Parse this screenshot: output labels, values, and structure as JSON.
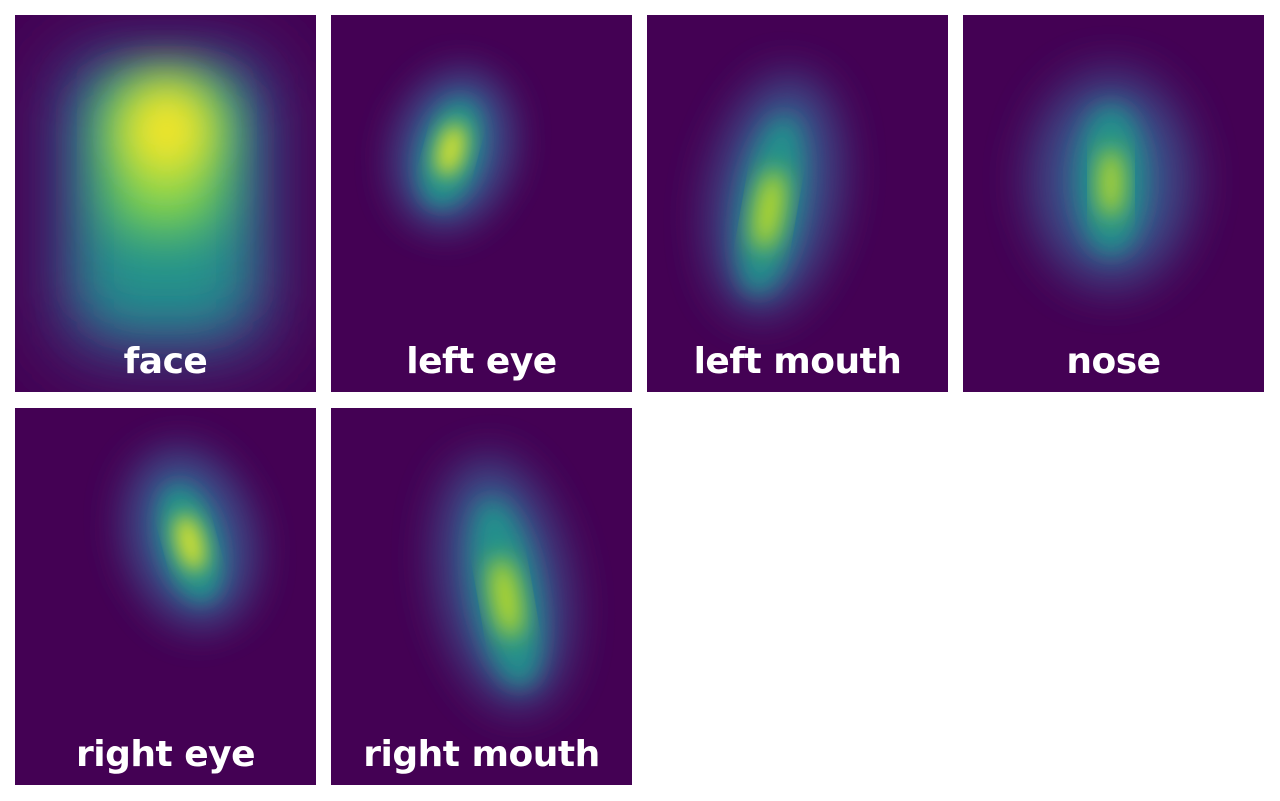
{
  "chart_data": {
    "type": "heatmap",
    "colormap": "viridis",
    "colors": {
      "background": "#440154",
      "low": "#440154",
      "mid": "#21918c",
      "high": "#fde725",
      "label": "#ffffff"
    },
    "panels": [
      {
        "title": "face"
      },
      {
        "title": "left eye"
      },
      {
        "title": "left mouth"
      },
      {
        "title": "nose"
      },
      {
        "title": "right eye"
      },
      {
        "title": "right mouth"
      }
    ]
  }
}
